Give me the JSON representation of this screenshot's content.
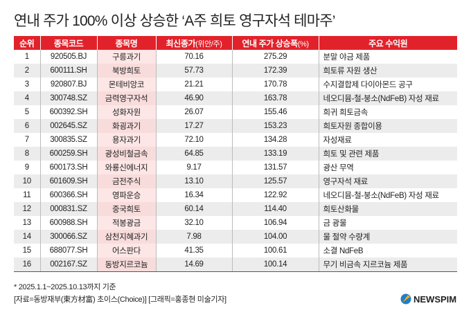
{
  "title": "연내 주가 100% 이상 상승한 ‘A주 희토 영구자석 테마주’",
  "headers": {
    "rank": "순위",
    "code": "종목코드",
    "name": "종목명",
    "price": "최신종가",
    "price_unit": "(위안/주)",
    "gain": "연내 주가 상승폭",
    "gain_unit": "(%)",
    "source": "주요 수익원"
  },
  "rows": [
    {
      "rank": "1",
      "code": "920505.BJ",
      "name": "구릉과기",
      "price": "70.16",
      "gain": "275.29",
      "source": "분말 야금 제품"
    },
    {
      "rank": "2",
      "code": "600111.SH",
      "name": "북방희토",
      "price": "57.73",
      "gain": "172.39",
      "source": "희토류 자원 생산"
    },
    {
      "rank": "3",
      "code": "920807.BJ",
      "name": "몬테비앙코",
      "price": "21.21",
      "gain": "170.78",
      "source": "수지결합제 다이아몬드 공구"
    },
    {
      "rank": "4",
      "code": "300748.SZ",
      "name": "금력영구자석",
      "price": "46.90",
      "gain": "163.78",
      "source": "네오디뮴-철-붕소(NdFeB) 자성 재료"
    },
    {
      "rank": "5",
      "code": "600392.SH",
      "name": "성화자원",
      "price": "26.07",
      "gain": "155.46",
      "source": "희귀 희토금속"
    },
    {
      "rank": "6",
      "code": "002645.SZ",
      "name": "화굉과기",
      "price": "17.27",
      "gain": "153.23",
      "source": "희토자원 종합이용"
    },
    {
      "rank": "7",
      "code": "300835.SZ",
      "name": "용자과기",
      "price": "72.10",
      "gain": "134.28",
      "source": "자성재료"
    },
    {
      "rank": "8",
      "code": "600259.SH",
      "name": "광성비철금속",
      "price": "64.85",
      "gain": "133.19",
      "source": "희토 및 관련 제품"
    },
    {
      "rank": "9",
      "code": "600173.SH",
      "name": "와룡신에너지",
      "price": "9.17",
      "gain": "131.57",
      "source": "광산 무역"
    },
    {
      "rank": "10",
      "code": "601609.SH",
      "name": "금전주식",
      "price": "13.10",
      "gain": "125.57",
      "source": "영구자석 재료"
    },
    {
      "rank": "11",
      "code": "600366.SH",
      "name": "영파운승",
      "price": "16.34",
      "gain": "122.92",
      "source": "네오디뮴-철-붕소(NdFeB) 자성 재료"
    },
    {
      "rank": "12",
      "code": "000831.SZ",
      "name": "중국희토",
      "price": "60.14",
      "gain": "114.40",
      "source": "희토산화물"
    },
    {
      "rank": "13",
      "code": "600988.SH",
      "name": "적봉광금",
      "price": "32.10",
      "gain": "106.94",
      "source": "금 광물"
    },
    {
      "rank": "14",
      "code": "300066.SZ",
      "name": "삼천지혜과기",
      "price": "7.98",
      "gain": "104.00",
      "source": "물 절약 수량계"
    },
    {
      "rank": "15",
      "code": "688077.SH",
      "name": "어스판다",
      "price": "41.35",
      "gain": "100.61",
      "source": "소결 NdFeB"
    },
    {
      "rank": "16",
      "code": "002167.SZ",
      "name": "동방지르코늄",
      "price": "14.69",
      "gain": "100.14",
      "source": "무기 비금속 지르코늄 제품"
    }
  ],
  "footnote": "* 2025.1.1~2025.10.13까지 기준",
  "credit": "[자료=동방재부(東方材富) 초이스(Choice)] [그래픽=홍종현 미술기자]",
  "logo": "NEWSPIM",
  "colors": {
    "header": "#e2222b",
    "name_col": "#fde6e6",
    "alt_row": "#ececec"
  }
}
